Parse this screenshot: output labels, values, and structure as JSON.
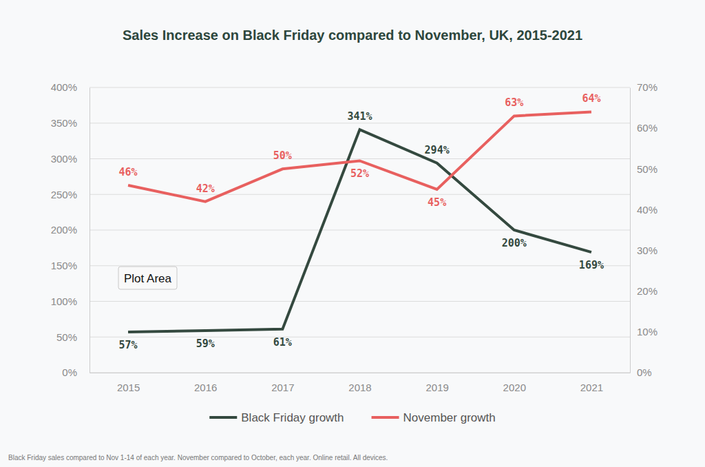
{
  "chart_data": {
    "type": "line",
    "title": "Sales Increase on Black Friday compared to November, UK, 2015-2021",
    "footnote": "Black Friday sales compared to Nov 1-14 of each year. November compared to October, each year. Online retail. All devices.",
    "annotations": [
      "Plot Area"
    ],
    "categories": [
      "2015",
      "2016",
      "2017",
      "2018",
      "2019",
      "2020",
      "2021"
    ],
    "series": [
      {
        "name": "Black Friday growth",
        "color": "#34493f",
        "values": [
          57,
          59,
          61,
          341,
          294,
          200,
          169
        ],
        "value_labels": [
          "57%",
          "59%",
          "61%",
          "341%",
          "294%",
          "200%",
          "169%"
        ]
      },
      {
        "name": "November growth",
        "color": "#e8605f",
        "axis": "y2",
        "values": [
          46,
          42,
          50,
          52,
          45,
          63,
          64
        ],
        "value_labels": [
          "46%",
          "42%",
          "50%",
          "52%",
          "45%",
          "63%",
          "64%"
        ]
      }
    ],
    "ylim": [
      0,
      400
    ],
    "yticks": [
      {
        "value": 0,
        "label": "0%"
      },
      {
        "value": 50,
        "label": "50%"
      },
      {
        "value": 100,
        "label": "100%"
      },
      {
        "value": 150,
        "label": "150%"
      },
      {
        "value": 200,
        "label": "200%"
      },
      {
        "value": 250,
        "label": "250%"
      },
      {
        "value": 300,
        "label": "300%"
      },
      {
        "value": 350,
        "label": "350%"
      },
      {
        "value": 400,
        "label": "400%"
      }
    ],
    "y2lim": [
      0,
      70
    ],
    "y2ticks": [
      {
        "value": 0,
        "label": "0%"
      },
      {
        "value": 10,
        "label": "10%"
      },
      {
        "value": 20,
        "label": "20%"
      },
      {
        "value": 30,
        "label": "30%"
      },
      {
        "value": 40,
        "label": "40%"
      },
      {
        "value": 50,
        "label": "50%"
      },
      {
        "value": 60,
        "label": "60%"
      },
      {
        "value": 70,
        "label": "70%"
      }
    ],
    "grid": true,
    "data_labels": true,
    "legend": "bottom"
  }
}
